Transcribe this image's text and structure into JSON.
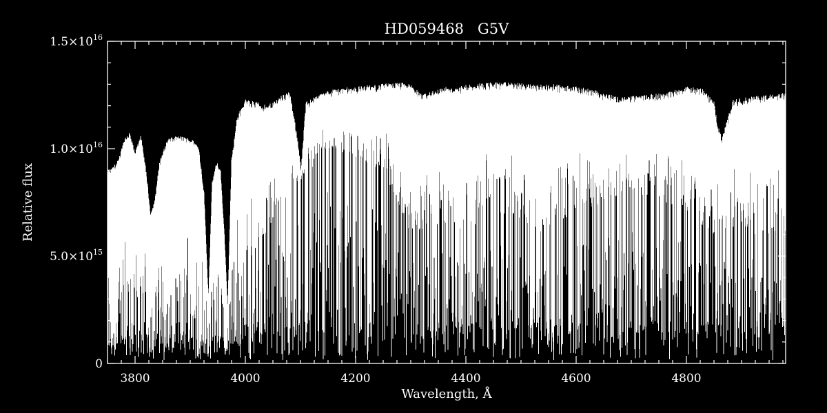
{
  "chart_data": {
    "type": "line",
    "title": "HD059468   G5V",
    "xlabel": "Wavelength, Å",
    "ylabel": "Relative flux",
    "xlim": [
      3750,
      4980
    ],
    "ylim": [
      0,
      1.5e+16
    ],
    "x_ticks": [
      {
        "value": 3800,
        "label": "3800"
      },
      {
        "value": 4000,
        "label": "4000"
      },
      {
        "value": 4200,
        "label": "4200"
      },
      {
        "value": 4400,
        "label": "4400"
      },
      {
        "value": 4600,
        "label": "4600"
      },
      {
        "value": 4800,
        "label": "4800"
      }
    ],
    "y_ticks": [
      {
        "value": 0,
        "mantissa": "0",
        "exponent": ""
      },
      {
        "value": 5000000000000000.0,
        "mantissa": "5.0×10",
        "exponent": "15"
      },
      {
        "value": 1e+16,
        "mantissa": "1.0×10",
        "exponent": "16"
      },
      {
        "value": 1.5e+16,
        "mantissa": "1.5×10",
        "exponent": "16"
      }
    ],
    "series": [
      {
        "color": "#ffffff",
        "upper_envelope_x": [
          3755,
          3770,
          3780,
          3790,
          3800,
          3810,
          3820,
          3828,
          3835,
          3845,
          3860,
          3880,
          3900,
          3915,
          3925,
          3933,
          3940,
          3948,
          3955,
          3962,
          3968,
          3975,
          3985,
          4000,
          4020,
          4040,
          4060,
          4080,
          4095,
          4101,
          4110,
          4130,
          4160,
          4200,
          4240,
          4280,
          4300,
          4310,
          4320,
          4340,
          4360,
          4380,
          4400,
          4440,
          4480,
          4520,
          4560,
          4600,
          4640,
          4680,
          4720,
          4760,
          4800,
          4830,
          4850,
          4858,
          4865,
          4872,
          4885,
          4910,
          4940,
          4980
        ],
        "upper_envelope_y": [
          9000000000000000.0,
          9500000000000000.0,
          1.05e+16,
          1.08e+16,
          9800000000000000.0,
          1.07e+16,
          9000000000000000.0,
          7000000000000000.0,
          7500000000000000.0,
          9500000000000000.0,
          1.05e+16,
          1.06e+16,
          1.05e+16,
          1.02e+16,
          8000000000000000.0,
          3000000000000000.0,
          8500000000000000.0,
          9400000000000000.0,
          9000000000000000.0,
          6000000000000000.0,
          2500000000000000.0,
          9500000000000000.0,
          1.15e+16,
          1.23e+16,
          1.22e+16,
          1.2e+16,
          1.24e+16,
          1.27e+16,
          1.05e+16,
          9000000000000000.0,
          1.22e+16,
          1.25e+16,
          1.28e+16,
          1.29e+16,
          1.3e+16,
          1.31e+16,
          1.3e+16,
          1.28e+16,
          1.25e+16,
          1.27e+16,
          1.29e+16,
          1.28e+16,
          1.3e+16,
          1.31e+16,
          1.31e+16,
          1.3e+16,
          1.3e+16,
          1.29e+16,
          1.27e+16,
          1.24e+16,
          1.25e+16,
          1.26e+16,
          1.29e+16,
          1.28e+16,
          1.22e+16,
          1.1e+16,
          1.05e+16,
          1.12e+16,
          1.23e+16,
          1.24e+16,
          1.25e+16,
          1.26e+16
        ],
        "continuum_floor_x": [
          3755,
          3790,
          3830,
          3870,
          3900,
          3930,
          3960,
          4000,
          4050,
          4100,
          4150,
          4200,
          4250,
          4300,
          4350,
          4400,
          4450,
          4500,
          4550,
          4600,
          4650,
          4700,
          4750,
          4800,
          4850,
          4900,
          4950,
          4980
        ],
        "continuum_floor_y": [
          1500000000000000.0,
          2500000000000000.0,
          2000000000000000.0,
          2000000000000000.0,
          2200000000000000.0,
          1500000000000000.0,
          1800000000000000.0,
          4500000000000000.0,
          6500000000000000.0,
          8500000000000000.0,
          1e+16,
          9500000000000000.0,
          9000000000000000.0,
          6000000000000000.0,
          6500000000000000.0,
          6000000000000000.0,
          7000000000000000.0,
          6500000000000000.0,
          6000000000000000.0,
          7000000000000000.0,
          7500000000000000.0,
          8000000000000000.0,
          7500000000000000.0,
          7000000000000000.0,
          6000000000000000.0,
          6500000000000000.0,
          5500000000000000.0,
          6000000000000000.0
        ]
      }
    ]
  }
}
